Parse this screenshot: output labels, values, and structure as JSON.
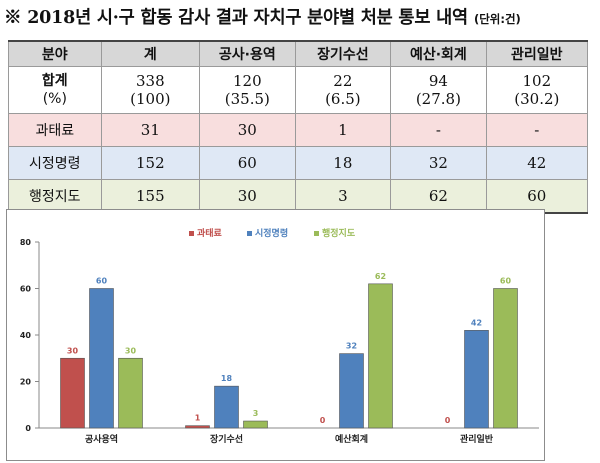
{
  "title": "※ 2018년 시·구 합동 감사 결과 자치구 분야별 처분 통보 내역",
  "unit": "(단위:건)",
  "table": {
    "headers": [
      "분야",
      "계",
      "공사·용역",
      "장기수선",
      "예산·회계",
      "관리일반"
    ],
    "total_label": "합계",
    "total_pct_label": "(%)",
    "total_values": [
      "338",
      "120",
      "22",
      "94",
      "102"
    ],
    "total_pcts": [
      "(100)",
      "(35.5)",
      "(6.5)",
      "(27.8)",
      "(30.2)"
    ],
    "rows": [
      {
        "label": "과태료",
        "values": [
          "31",
          "30",
          "1",
          "-",
          "-"
        ]
      },
      {
        "label": "시정명령",
        "values": [
          "152",
          "60",
          "18",
          "32",
          "42"
        ]
      },
      {
        "label": "행정지도",
        "values": [
          "155",
          "30",
          "3",
          "62",
          "60"
        ]
      }
    ]
  },
  "chart_data": {
    "type": "bar",
    "categories": [
      "공사용역",
      "장기수선",
      "예산회계",
      "관리일반"
    ],
    "series": [
      {
        "name": "과태료",
        "values": [
          30,
          1,
          0,
          0
        ],
        "color": "#c0504d"
      },
      {
        "name": "시정명령",
        "values": [
          60,
          18,
          32,
          42
        ],
        "color": "#4f81bd"
      },
      {
        "name": "행정지도",
        "values": [
          30,
          3,
          62,
          60
        ],
        "color": "#9bbb59"
      }
    ],
    "yticks": [
      0,
      20,
      40,
      60,
      80
    ],
    "ylim": [
      0,
      80
    ],
    "legend_position": "top-center"
  }
}
